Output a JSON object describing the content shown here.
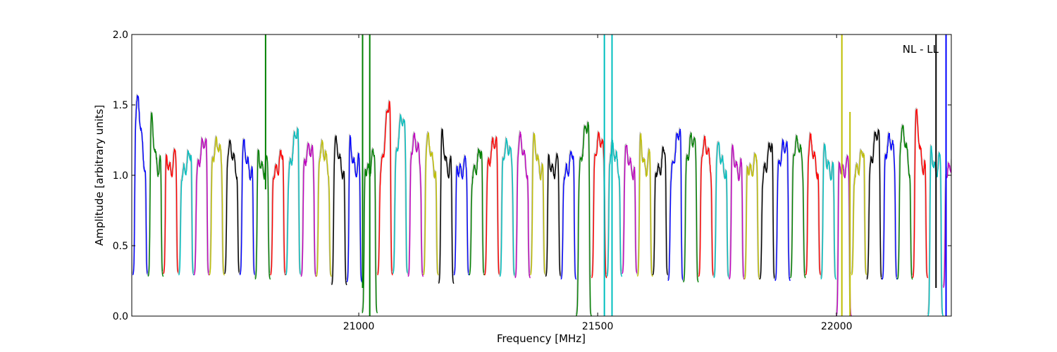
{
  "chart_data": {
    "type": "line",
    "title": "",
    "xlabel": "Frequency [MHz]",
    "ylabel": "Amplitude [arbitrary units]",
    "annotation": "NL - LL",
    "xlim": [
      20525,
      22240
    ],
    "ylim": [
      0.0,
      2.0
    ],
    "xticks": [
      21000,
      21500,
      22000
    ],
    "xtick_labels": [
      "21000",
      "21500",
      "22000"
    ],
    "yticks": [
      0.0,
      0.5,
      1.0,
      1.5,
      2.0
    ],
    "ytick_labels": [
      "0.0",
      "0.5",
      "1.0",
      "1.5",
      "2.0"
    ],
    "grid": false,
    "legend": "none",
    "color_cycle": [
      "#0000ff",
      "#008000",
      "#ff0000",
      "#00bfbf",
      "#bf00bf",
      "#bfbf00",
      "#000000"
    ],
    "band_width_mhz": 32,
    "band_starts_mhz": [
      20527,
      20559,
      20591,
      20623,
      20655,
      20687,
      20719,
      20751,
      20783,
      20815,
      20847,
      20879,
      20911,
      20943,
      20975,
      21007,
      21039,
      21071,
      21103,
      21135,
      21167,
      21199,
      21231,
      21263,
      21295,
      21327,
      21359,
      21391,
      21423,
      21455,
      21487,
      21519,
      21551,
      21583,
      21615,
      21647,
      21679,
      21711,
      21743,
      21775,
      21807,
      21839,
      21871,
      21903,
      21935,
      21967,
      21999,
      22031,
      22063,
      22095,
      22127,
      22159,
      22191,
      22223
    ],
    "band_peak_amplitudes": [
      1.53,
      1.45,
      1.3,
      1.19,
      1.24,
      1.22,
      1.2,
      1.23,
      1.27,
      1.21,
      1.31,
      1.19,
      1.19,
      1.24,
      1.33,
      1.25,
      1.53,
      1.4,
      1.25,
      1.26,
      1.35,
      1.18,
      1.2,
      1.24,
      1.21,
      1.25,
      1.28,
      1.25,
      1.2,
      1.36,
      1.26,
      1.19,
      1.19,
      1.39,
      1.25,
      1.32,
      1.26,
      1.22,
      1.2,
      1.23,
      1.22,
      1.24,
      1.21,
      1.23,
      1.24,
      1.21,
      1.21,
      1.2,
      1.3,
      1.25,
      1.31,
      1.46,
      1.3,
      1.3
    ],
    "band_min_amplitudes": [
      0.29,
      0.28,
      0.3,
      0.29,
      0.29,
      0.29,
      0.3,
      0.29,
      0.26,
      0.29,
      0.29,
      0.28,
      0.28,
      0.22,
      0.24,
      0.02,
      0.29,
      0.3,
      0.28,
      0.29,
      0.23,
      0.29,
      0.29,
      0.29,
      0.28,
      0.27,
      0.29,
      0.28,
      0.26,
      0.0,
      0.27,
      0.28,
      0.3,
      0.28,
      0.29,
      0.25,
      0.24,
      0.28,
      0.27,
      0.26,
      0.26,
      0.26,
      0.25,
      0.27,
      0.29,
      0.26,
      0.0,
      0.29,
      0.26,
      0.26,
      0.26,
      0.27,
      0.0,
      0.2
    ],
    "spikes": [
      {
        "x": 20805,
        "y_low": 0.9,
        "y_high": 2.0,
        "color": "#008000"
      },
      {
        "x": 21008,
        "y_low": 0.2,
        "y_high": 2.0,
        "color": "#008000"
      },
      {
        "x": 21023,
        "y_low": 0.0,
        "y_high": 2.0,
        "color": "#008000"
      },
      {
        "x": 21514,
        "y_low": 0.0,
        "y_high": 2.0,
        "color": "#00bfbf"
      },
      {
        "x": 21530,
        "y_low": 0.0,
        "y_high": 2.0,
        "color": "#00bfbf"
      },
      {
        "x": 22011,
        "y_low": 0.0,
        "y_high": 2.0,
        "color": "#bfbf00"
      },
      {
        "x": 22028,
        "y_low": 0.0,
        "y_high": 1.45,
        "color": "#bfbf00"
      },
      {
        "x": 22208,
        "y_low": 0.2,
        "y_high": 2.0,
        "color": "#000000"
      },
      {
        "x": 22229,
        "y_low": 0.0,
        "y_high": 2.0,
        "color": "#0000ff"
      }
    ]
  }
}
